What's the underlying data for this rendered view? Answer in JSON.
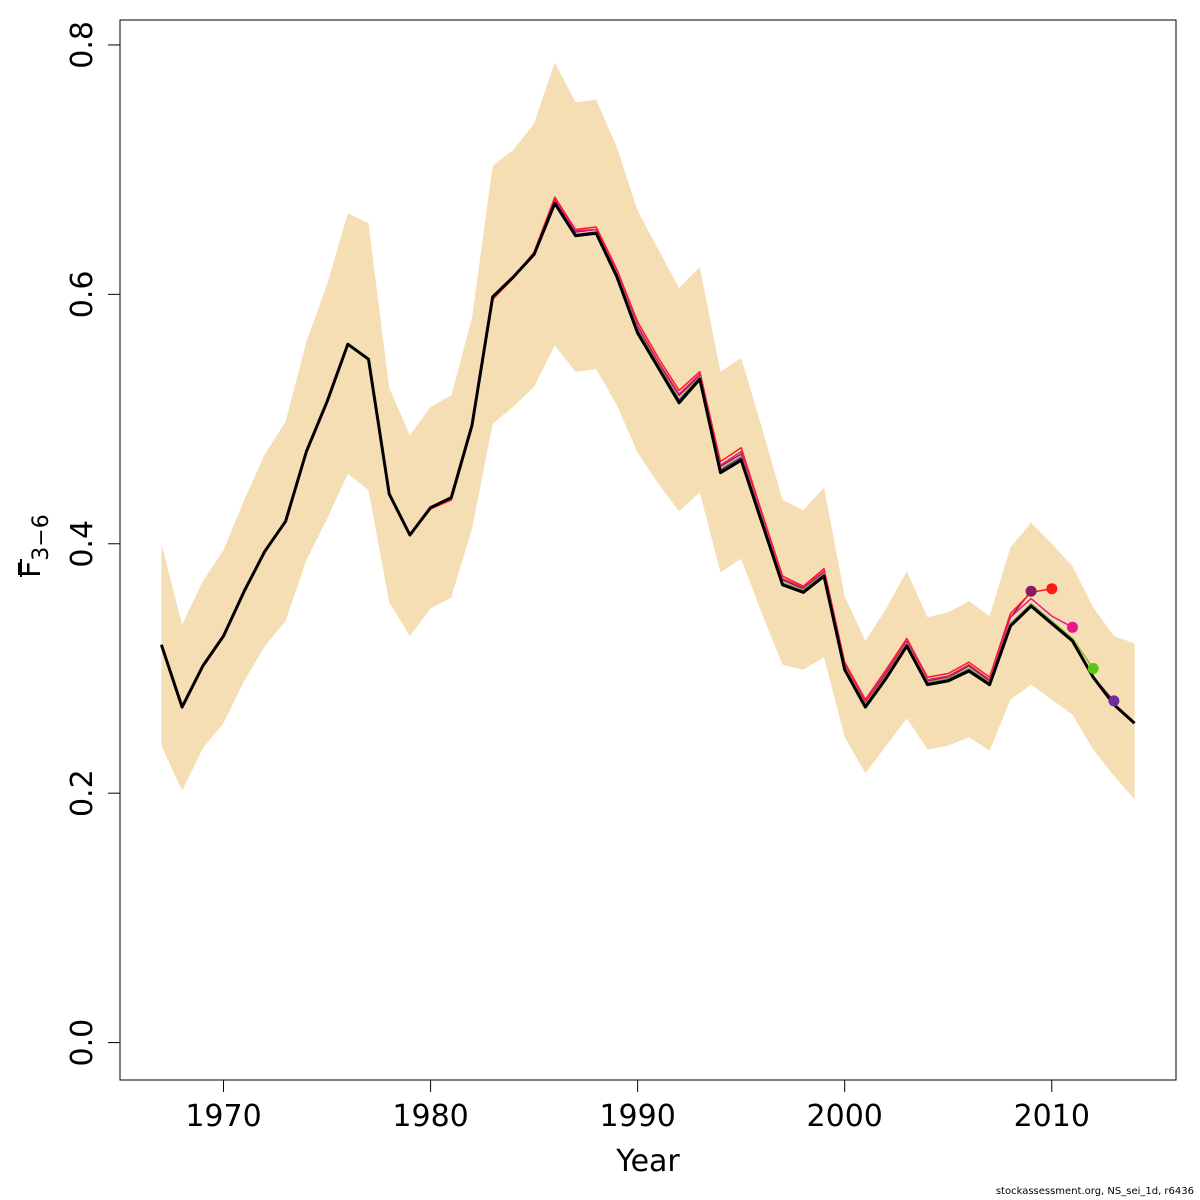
{
  "chart_data": {
    "type": "line",
    "xlabel": "Year",
    "ylabel_main": "F",
    "ylabel_sub": "3−6",
    "xlim": [
      1965,
      2016
    ],
    "ylim": [
      -0.03,
      0.82
    ],
    "x_ticks": [
      1970,
      1980,
      1990,
      2000,
      2010
    ],
    "y_ticks": [
      0.0,
      0.2,
      0.4,
      0.6,
      0.8
    ],
    "y_tick_labels": [
      "0.0",
      "0.2",
      "0.4",
      "0.6",
      "0.8"
    ],
    "grid": false,
    "legend": "none",
    "band": {
      "color": "#f5deb3",
      "years": [
        1967,
        1968,
        1969,
        1970,
        1971,
        1972,
        1973,
        1974,
        1975,
        1976,
        1977,
        1978,
        1979,
        1980,
        1981,
        1982,
        1983,
        1984,
        1985,
        1986,
        1987,
        1988,
        1989,
        1990,
        1991,
        1992,
        1993,
        1994,
        1995,
        1996,
        1997,
        1998,
        1999,
        2000,
        2001,
        2002,
        2003,
        2004,
        2005,
        2006,
        2007,
        2008,
        2009,
        2010,
        2011,
        2012,
        2013,
        2014
      ],
      "upper": [
        0.4,
        0.335,
        0.37,
        0.395,
        0.435,
        0.472,
        0.498,
        0.562,
        0.608,
        0.665,
        0.657,
        0.525,
        0.487,
        0.51,
        0.519,
        0.581,
        0.703,
        0.716,
        0.737,
        0.786,
        0.754,
        0.756,
        0.718,
        0.667,
        0.636,
        0.605,
        0.622,
        0.538,
        0.549,
        0.493,
        0.435,
        0.427,
        0.445,
        0.358,
        0.322,
        0.348,
        0.378,
        0.341,
        0.345,
        0.354,
        0.342,
        0.397,
        0.417,
        0.4,
        0.382,
        0.349,
        0.326,
        0.32
      ],
      "lower": [
        0.238,
        0.202,
        0.236,
        0.256,
        0.29,
        0.318,
        0.338,
        0.387,
        0.42,
        0.456,
        0.443,
        0.353,
        0.326,
        0.348,
        0.357,
        0.412,
        0.496,
        0.51,
        0.526,
        0.559,
        0.538,
        0.54,
        0.511,
        0.473,
        0.448,
        0.426,
        0.441,
        0.377,
        0.388,
        0.344,
        0.303,
        0.299,
        0.309,
        0.245,
        0.216,
        0.238,
        0.26,
        0.235,
        0.238,
        0.245,
        0.234,
        0.275,
        0.287,
        0.275,
        0.263,
        0.235,
        0.214,
        0.195
      ]
    },
    "series": [
      {
        "color": "#000000",
        "x": [
          1967,
          1968,
          1969,
          1970,
          1971,
          1972,
          1973,
          1974,
          1975,
          1976,
          1977,
          1978,
          1979,
          1980,
          1981,
          1982,
          1983,
          1984,
          1985,
          1986,
          1987,
          1988,
          1989,
          1990,
          1991,
          1992,
          1993,
          1994,
          1995,
          1996,
          1997,
          1998,
          1999,
          2000,
          2001,
          2002,
          2003,
          2004,
          2005,
          2006,
          2007,
          2008,
          2009,
          2010,
          2011,
          2012,
          2013,
          2014
        ],
        "y": [
          0.319,
          0.269,
          0.302,
          0.326,
          0.362,
          0.394,
          0.418,
          0.474,
          0.514,
          0.56,
          0.548,
          0.44,
          0.407,
          0.429,
          0.437,
          0.495,
          0.598,
          0.614,
          0.632,
          0.673,
          0.647,
          0.649,
          0.614,
          0.569,
          0.541,
          0.513,
          0.532,
          0.457,
          0.467,
          0.417,
          0.367,
          0.361,
          0.374,
          0.299,
          0.269,
          0.292,
          0.318,
          0.287,
          0.29,
          0.298,
          0.287,
          0.334,
          0.35,
          0.336,
          0.322,
          0.293,
          0.271,
          0.256
        ]
      },
      {
        "color": "#6f2c9a",
        "x": [
          1967,
          1968,
          1969,
          1970,
          1971,
          1972,
          1973,
          1974,
          1975,
          1976,
          1977,
          1978,
          1979,
          1980,
          1981,
          1982,
          1983,
          1984,
          1985,
          1986,
          1987,
          1988,
          1989,
          1990,
          1991,
          1992,
          1993,
          1994,
          1995,
          1996,
          1997,
          1998,
          1999,
          2000,
          2001,
          2002,
          2003,
          2004,
          2005,
          2006,
          2007,
          2008,
          2009,
          2010,
          2011,
          2012,
          2013
        ],
        "y": [
          0.319,
          0.269,
          0.302,
          0.326,
          0.362,
          0.394,
          0.418,
          0.474,
          0.514,
          0.56,
          0.548,
          0.44,
          0.407,
          0.429,
          0.437,
          0.495,
          0.598,
          0.614,
          0.632,
          0.673,
          0.648,
          0.65,
          0.615,
          0.571,
          0.542,
          0.515,
          0.533,
          0.459,
          0.469,
          0.419,
          0.368,
          0.362,
          0.375,
          0.3,
          0.27,
          0.293,
          0.319,
          0.288,
          0.291,
          0.299,
          0.288,
          0.335,
          0.351,
          0.337,
          0.323,
          0.293,
          0.274
        ]
      },
      {
        "color": "#7dbf1e",
        "x": [
          1967,
          1968,
          1969,
          1970,
          1971,
          1972,
          1973,
          1974,
          1975,
          1976,
          1977,
          1978,
          1979,
          1980,
          1981,
          1982,
          1983,
          1984,
          1985,
          1986,
          1987,
          1988,
          1989,
          1990,
          1991,
          1992,
          1993,
          1994,
          1995,
          1996,
          1997,
          1998,
          1999,
          2000,
          2001,
          2002,
          2003,
          2004,
          2005,
          2006,
          2007,
          2008,
          2009,
          2010,
          2011,
          2012
        ],
        "y": [
          0.319,
          0.269,
          0.302,
          0.326,
          0.362,
          0.394,
          0.418,
          0.474,
          0.514,
          0.56,
          0.548,
          0.44,
          0.407,
          0.429,
          0.437,
          0.495,
          0.598,
          0.614,
          0.632,
          0.674,
          0.648,
          0.65,
          0.616,
          0.572,
          0.543,
          0.516,
          0.534,
          0.46,
          0.47,
          0.42,
          0.369,
          0.363,
          0.376,
          0.301,
          0.271,
          0.294,
          0.32,
          0.289,
          0.292,
          0.3,
          0.289,
          0.336,
          0.352,
          0.338,
          0.324,
          0.3
        ]
      },
      {
        "color": "#e8168a",
        "x": [
          1967,
          1968,
          1969,
          1970,
          1971,
          1972,
          1973,
          1974,
          1975,
          1976,
          1977,
          1978,
          1979,
          1980,
          1981,
          1982,
          1983,
          1984,
          1985,
          1986,
          1987,
          1988,
          1989,
          1990,
          1991,
          1992,
          1993,
          1994,
          1995,
          1996,
          1997,
          1998,
          1999,
          2000,
          2001,
          2002,
          2003,
          2004,
          2005,
          2006,
          2007,
          2008,
          2009,
          2010,
          2011
        ],
        "y": [
          0.319,
          0.269,
          0.302,
          0.326,
          0.362,
          0.394,
          0.418,
          0.474,
          0.514,
          0.56,
          0.548,
          0.44,
          0.407,
          0.428,
          0.436,
          0.495,
          0.597,
          0.614,
          0.633,
          0.676,
          0.651,
          0.652,
          0.618,
          0.575,
          0.546,
          0.52,
          0.536,
          0.463,
          0.474,
          0.422,
          0.372,
          0.365,
          0.378,
          0.303,
          0.273,
          0.297,
          0.322,
          0.291,
          0.294,
          0.303,
          0.291,
          0.341,
          0.356,
          0.342,
          0.333
        ]
      },
      {
        "color": "#ff1a1a",
        "x": [
          1967,
          1968,
          1969,
          1970,
          1971,
          1972,
          1973,
          1974,
          1975,
          1976,
          1977,
          1978,
          1979,
          1980,
          1981,
          1982,
          1983,
          1984,
          1985,
          1986,
          1987,
          1988,
          1989,
          1990,
          1991,
          1992,
          1993,
          1994,
          1995,
          1996,
          1997,
          1998,
          1999,
          2000,
          2001,
          2002,
          2003,
          2004,
          2005,
          2006,
          2007,
          2008,
          2009,
          2010
        ],
        "y": [
          0.319,
          0.269,
          0.302,
          0.326,
          0.362,
          0.394,
          0.418,
          0.474,
          0.514,
          0.56,
          0.548,
          0.44,
          0.407,
          0.428,
          0.435,
          0.494,
          0.596,
          0.613,
          0.634,
          0.678,
          0.652,
          0.654,
          0.62,
          0.578,
          0.549,
          0.523,
          0.538,
          0.466,
          0.477,
          0.425,
          0.374,
          0.366,
          0.38,
          0.305,
          0.275,
          0.299,
          0.324,
          0.293,
          0.296,
          0.305,
          0.293,
          0.344,
          0.361,
          0.364
        ]
      },
      {
        "color": "#8b1a5e",
        "x": [
          1967,
          1968,
          1969,
          1970,
          1971,
          1972,
          1973,
          1974,
          1975,
          1976,
          1977,
          1978,
          1979,
          1980,
          1981,
          1982,
          1983,
          1984,
          1985,
          1986,
          1987,
          1988,
          1989,
          1990,
          1991,
          1992,
          1993,
          1994,
          1995,
          1996,
          1997,
          1998,
          1999,
          2000,
          2001,
          2002,
          2003,
          2004,
          2005,
          2006,
          2007,
          2008,
          2009
        ],
        "y": [
          0.319,
          0.269,
          0.302,
          0.326,
          0.362,
          0.394,
          0.418,
          0.474,
          0.514,
          0.56,
          0.548,
          0.44,
          0.407,
          0.428,
          0.436,
          0.494,
          0.597,
          0.613,
          0.633,
          0.676,
          0.65,
          0.652,
          0.617,
          0.574,
          0.545,
          0.519,
          0.535,
          0.462,
          0.472,
          0.421,
          0.371,
          0.364,
          0.377,
          0.302,
          0.272,
          0.296,
          0.321,
          0.29,
          0.293,
          0.302,
          0.29,
          0.341,
          0.362
        ]
      }
    ],
    "endpoints": [
      {
        "x": 2009,
        "y": 0.362,
        "color": "#8b1a5e"
      },
      {
        "x": 2010,
        "y": 0.364,
        "color": "#ff1a1a"
      },
      {
        "x": 2011,
        "y": 0.333,
        "color": "#e8168a"
      },
      {
        "x": 2012,
        "y": 0.3,
        "color": "#56c51a"
      },
      {
        "x": 2013,
        "y": 0.274,
        "color": "#6f2c9a"
      }
    ]
  },
  "credit": "stockassessment.org, NS_sei_1d, r6436"
}
